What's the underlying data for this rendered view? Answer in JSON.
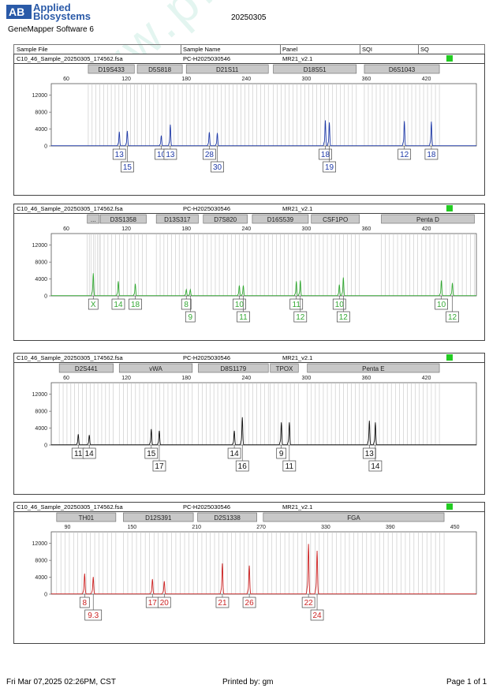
{
  "header": {
    "logo_line1": "Applied",
    "logo_line2": "Biosystems",
    "software": "GeneMapper Software 6",
    "run_date": "20250305",
    "columns": [
      "Sample File",
      "Sample Name",
      "Panel",
      "SQI",
      "SQ"
    ]
  },
  "footer": {
    "printed_on": "Fri Mar 07,2025 02:26PM, CST",
    "printed_by": "Printed by: gm",
    "page": "Page 1 of 1"
  },
  "watermark": "www.procell.com.cn",
  "colors": {
    "blue": "#1f3aa8",
    "green": "#33a833",
    "black": "#111111",
    "red": "#cc2222",
    "sq_ok": "#22cc22"
  },
  "chart_data": [
    {
      "type": "line",
      "sample_file": "C10_46_Sample_20250305_174562.fsa",
      "sample_name": "PC-H2025030546",
      "panel": "MR21_v2.1",
      "color": "#1f3aa8",
      "xlim": [
        45,
        470
      ],
      "ylim": [
        0,
        14000
      ],
      "x_ticks": [
        60,
        120,
        180,
        240,
        300,
        360,
        420
      ],
      "y_ticks": [
        0,
        4000,
        8000,
        12000
      ],
      "markers": [
        {
          "name": "D19S433",
          "start": 82,
          "end": 128
        },
        {
          "name": "D5S818",
          "start": 131,
          "end": 176
        },
        {
          "name": "D21S11",
          "start": 180,
          "end": 262
        },
        {
          "name": "D18S51",
          "start": 267,
          "end": 350
        },
        {
          "name": "D6S1043",
          "start": 358,
          "end": 433
        }
      ],
      "peaks": [
        {
          "x": 113,
          "h": 3300,
          "allele": "13",
          "row": 1
        },
        {
          "x": 121,
          "h": 3500,
          "allele": "15",
          "row": 2
        },
        {
          "x": 155,
          "h": 2400,
          "allele": "10",
          "row": 1
        },
        {
          "x": 164,
          "h": 5000,
          "allele": "13",
          "row": 1
        },
        {
          "x": 203,
          "h": 3200,
          "allele": "28",
          "row": 1
        },
        {
          "x": 211,
          "h": 3000,
          "allele": "30",
          "row": 2
        },
        {
          "x": 319,
          "h": 6000,
          "allele": "18",
          "row": 1
        },
        {
          "x": 323,
          "h": 5500,
          "allele": "19",
          "row": 2
        },
        {
          "x": 398,
          "h": 5800,
          "allele": "12",
          "row": 1
        },
        {
          "x": 425,
          "h": 5700,
          "allele": "18",
          "row": 1
        }
      ]
    },
    {
      "type": "line",
      "sample_file": "C10_46_Sample_20250305_174562.fsa",
      "sample_name": "PC-H2025030546",
      "panel": "MR21_v2.1",
      "color": "#33a833",
      "xlim": [
        45,
        470
      ],
      "ylim": [
        0,
        14000
      ],
      "x_ticks": [
        60,
        120,
        180,
        240,
        300,
        360,
        420
      ],
      "y_ticks": [
        0,
        4000,
        8000,
        12000
      ],
      "markers": [
        {
          "name": "...",
          "start": 81,
          "end": 93
        },
        {
          "name": "D3S1358",
          "start": 94,
          "end": 140
        },
        {
          "name": "D13S317",
          "start": 150,
          "end": 192
        },
        {
          "name": "D7S820",
          "start": 197,
          "end": 241
        },
        {
          "name": "D16S539",
          "start": 246,
          "end": 302
        },
        {
          "name": "CSF1PO",
          "start": 305,
          "end": 353
        },
        {
          "name": "Penta D",
          "start": 375,
          "end": 468
        }
      ],
      "peaks": [
        {
          "x": 87,
          "h": 5300,
          "allele": "X",
          "row": 1
        },
        {
          "x": 112,
          "h": 3400,
          "allele": "14",
          "row": 1
        },
        {
          "x": 129,
          "h": 2800,
          "allele": "18",
          "row": 1
        },
        {
          "x": 180,
          "h": 1400,
          "allele": "8",
          "row": 1
        },
        {
          "x": 184,
          "h": 1400,
          "allele": "9",
          "row": 2
        },
        {
          "x": 233,
          "h": 2400,
          "allele": "10",
          "row": 1
        },
        {
          "x": 237,
          "h": 2400,
          "allele": "11",
          "row": 2
        },
        {
          "x": 290,
          "h": 3400,
          "allele": "11",
          "row": 1
        },
        {
          "x": 294,
          "h": 3600,
          "allele": "12",
          "row": 2
        },
        {
          "x": 333,
          "h": 2600,
          "allele": "10",
          "row": 1
        },
        {
          "x": 337,
          "h": 4300,
          "allele": "12",
          "row": 2
        },
        {
          "x": 435,
          "h": 3600,
          "allele": "10",
          "row": 1
        },
        {
          "x": 446,
          "h": 3000,
          "allele": "12",
          "row": 2
        }
      ]
    },
    {
      "type": "line",
      "sample_file": "C10_46_Sample_20250305_174562.fsa",
      "sample_name": "PC-H2025030546",
      "panel": "MR21_v2.1",
      "color": "#111111",
      "xlim": [
        45,
        470
      ],
      "ylim": [
        0,
        14000
      ],
      "x_ticks": [
        60,
        120,
        180,
        240,
        300,
        360,
        420
      ],
      "y_ticks": [
        0,
        4000,
        8000,
        12000
      ],
      "markers": [
        {
          "name": "D2S441",
          "start": 53,
          "end": 107
        },
        {
          "name": "vWA",
          "start": 113,
          "end": 186
        },
        {
          "name": "D8S1179",
          "start": 192,
          "end": 262
        },
        {
          "name": "TPOX",
          "start": 264,
          "end": 292
        },
        {
          "name": "Penta E",
          "start": 301,
          "end": 433
        }
      ],
      "peaks": [
        {
          "x": 72,
          "h": 2500,
          "allele": "11",
          "row": 1
        },
        {
          "x": 83,
          "h": 2300,
          "allele": "14",
          "row": 1
        },
        {
          "x": 145,
          "h": 3700,
          "allele": "15",
          "row": 1
        },
        {
          "x": 153,
          "h": 3300,
          "allele": "17",
          "row": 2
        },
        {
          "x": 228,
          "h": 3300,
          "allele": "14",
          "row": 1
        },
        {
          "x": 236,
          "h": 6500,
          "allele": "16",
          "row": 2
        },
        {
          "x": 275,
          "h": 5300,
          "allele": "9",
          "row": 1
        },
        {
          "x": 283,
          "h": 5300,
          "allele": "11",
          "row": 2
        },
        {
          "x": 363,
          "h": 5700,
          "allele": "13",
          "row": 1
        },
        {
          "x": 369,
          "h": 5300,
          "allele": "14",
          "row": 2
        }
      ]
    },
    {
      "type": "line",
      "sample_file": "C10_46_Sample_20250305_174562.fsa",
      "sample_name": "PC-H2025030546",
      "panel": "MR21_v2.1",
      "color": "#cc2222",
      "xlim": [
        75,
        470
      ],
      "ylim": [
        0,
        14000
      ],
      "x_ticks": [
        90,
        150,
        210,
        270,
        330,
        390,
        450
      ],
      "y_ticks": [
        0,
        4000,
        8000,
        12000
      ],
      "markers": [
        {
          "name": "TH01",
          "start": 80,
          "end": 135
        },
        {
          "name": "D12S391",
          "start": 142,
          "end": 207
        },
        {
          "name": "D2S1338",
          "start": 211,
          "end": 266
        },
        {
          "name": "FGA",
          "start": 272,
          "end": 440
        }
      ],
      "peaks": [
        {
          "x": 106,
          "h": 4800,
          "allele": "8",
          "row": 1
        },
        {
          "x": 114,
          "h": 4000,
          "allele": "9.3",
          "row": 2
        },
        {
          "x": 169,
          "h": 3500,
          "allele": "17",
          "row": 1
        },
        {
          "x": 180,
          "h": 3000,
          "allele": "20",
          "row": 1
        },
        {
          "x": 234,
          "h": 7200,
          "allele": "21",
          "row": 1
        },
        {
          "x": 259,
          "h": 6700,
          "allele": "26",
          "row": 1
        },
        {
          "x": 314,
          "h": 11800,
          "allele": "22",
          "row": 1
        },
        {
          "x": 322,
          "h": 10200,
          "allele": "24",
          "row": 2
        }
      ]
    }
  ]
}
